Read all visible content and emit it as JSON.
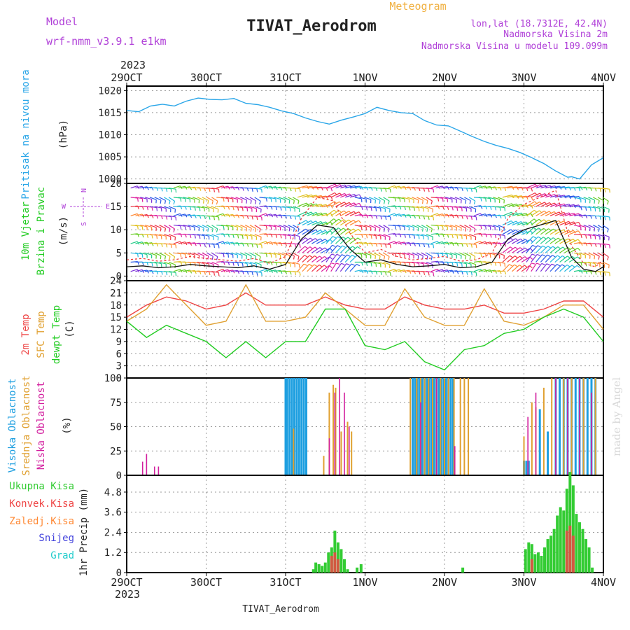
{
  "header": {
    "model_label": "Model",
    "model_name": "wrf-nmm_v3.9.1 e1km",
    "title": "TIVAT_Aerodrom",
    "subtitle": "Meteogram",
    "lonlat": "lon,lat (18.7312E, 42.4N)",
    "altitude": "Nadmorska Visina 2m",
    "model_altitude": "Nadmorska Visina u modelu 109.099m",
    "footer_station": "TIVAT_Aerodrom",
    "credit": "made by Angel"
  },
  "colors": {
    "pressure": "#2aa6e8",
    "temp2m": "#ee4444",
    "sfc_temp": "#e0a030",
    "dewpoint": "#22cc22",
    "high_cloud": "#1e9fe0",
    "mid_cloud": "#e0a030",
    "low_cloud": "#d21e9e",
    "total_precip": "#33cc33",
    "conv_precip": "#ee4444",
    "freezing_precip": "#ff8833",
    "snow": "#4444dd",
    "hail": "#22cccc"
  },
  "chart_data": [
    {
      "type": "line",
      "panel": "pressure",
      "ylabels": [
        "Pritisak na nivou mora",
        "(hPa)"
      ],
      "x_ticks_top": [
        "29OCT",
        "30OCT",
        "31OCT",
        "1NOV",
        "2NOV",
        "3NOV",
        "4NOV"
      ],
      "year_label": "2023",
      "ylim": [
        999,
        1021
      ],
      "yticks": [
        1000,
        1005,
        1010,
        1015,
        1020
      ],
      "x": [
        0,
        0.15,
        0.3,
        0.45,
        0.6,
        0.75,
        0.9,
        1.05,
        1.2,
        1.35,
        1.5,
        1.65,
        1.8,
        1.95,
        2.1,
        2.25,
        2.4,
        2.55,
        2.7,
        2.85,
        3.0,
        3.15,
        3.3,
        3.45,
        3.6,
        3.75,
        3.9,
        4.05,
        4.2,
        4.35,
        4.5,
        4.65,
        4.8,
        4.95,
        5.1,
        5.25,
        5.4,
        5.55,
        5.6,
        5.7,
        5.85,
        6.0
      ],
      "y": [
        1015.5,
        1015.2,
        1016.5,
        1016.9,
        1016.5,
        1017.6,
        1018.3,
        1018.0,
        1017.9,
        1018.2,
        1017.1,
        1016.8,
        1016.2,
        1015.4,
        1014.8,
        1013.8,
        1013.0,
        1012.4,
        1013.3,
        1014.0,
        1014.8,
        1016.2,
        1015.5,
        1015.0,
        1014.8,
        1013.2,
        1012.2,
        1012.0,
        1010.8,
        1009.6,
        1008.5,
        1007.6,
        1006.9,
        1006.0,
        1004.8,
        1003.5,
        1001.8,
        1000.4,
        1000.5,
        1000.0,
        1003.2,
        1004.8
      ],
      "series": [
        {
          "name": "Pritisak na nivou mora"
        }
      ]
    },
    {
      "type": "line",
      "panel": "wind",
      "ylabels": [
        "10m Vjetar",
        "Brzina i Pravac",
        "(m/s)"
      ],
      "compass": [
        "N",
        "S",
        "W",
        "E"
      ],
      "ylim": [
        -1,
        20
      ],
      "yticks": [
        0,
        5,
        10,
        15,
        20
      ],
      "x": [
        0,
        0.2,
        0.4,
        0.6,
        0.8,
        1.0,
        1.2,
        1.4,
        1.6,
        1.8,
        2.0,
        2.2,
        2.4,
        2.6,
        2.8,
        3.0,
        3.2,
        3.4,
        3.6,
        3.8,
        4.0,
        4.2,
        4.4,
        4.6,
        4.8,
        5.0,
        5.2,
        5.4,
        5.6,
        5.75,
        5.9,
        6.0
      ],
      "y": [
        2.0,
        2.2,
        1.8,
        2.0,
        2.5,
        2.2,
        2.0,
        1.8,
        2.2,
        1.5,
        2.5,
        8.0,
        11.0,
        10.5,
        6.0,
        3.0,
        3.5,
        2.5,
        2.0,
        2.2,
        2.5,
        1.8,
        2.0,
        3.0,
        8.0,
        10.0,
        11.0,
        12.0,
        4.0,
        1.5,
        1.0,
        2.0
      ],
      "wind_direction_rows": [
        1,
        3,
        5,
        7,
        9,
        11,
        13,
        15,
        17,
        19
      ]
    },
    {
      "type": "line",
      "panel": "temperature",
      "ylabels": [
        "2m Temp",
        "SFC Temp",
        "dewpt Temp",
        "(C)"
      ],
      "ylim": [
        0,
        24
      ],
      "yticks": [
        0,
        3,
        6,
        9,
        12,
        15,
        18,
        21,
        24
      ],
      "x": [
        0,
        0.25,
        0.5,
        0.75,
        1.0,
        1.25,
        1.5,
        1.75,
        2.0,
        2.25,
        2.5,
        2.75,
        3.0,
        3.25,
        3.5,
        3.75,
        4.0,
        4.25,
        4.5,
        4.75,
        5.0,
        5.25,
        5.5,
        5.75,
        6.0
      ],
      "series": [
        {
          "name": "2m Temp",
          "values": [
            15,
            18,
            20,
            19,
            17,
            18,
            21,
            18,
            18,
            18,
            20,
            18,
            17,
            17,
            20,
            18,
            17,
            17,
            18,
            16,
            16,
            17,
            19,
            19,
            15
          ]
        },
        {
          "name": "SFC Temp",
          "values": [
            14,
            17,
            23,
            18,
            13,
            14,
            23,
            14,
            14,
            15,
            21,
            17,
            13,
            13,
            22,
            15,
            13,
            13,
            22,
            14,
            13,
            15,
            18,
            18,
            12
          ]
        },
        {
          "name": "dewpt Temp",
          "values": [
            14,
            10,
            13,
            11,
            9,
            5,
            9,
            5,
            9,
            9,
            17,
            17,
            8,
            7,
            9,
            4,
            2,
            7,
            8,
            11,
            12,
            15,
            17,
            15,
            9
          ]
        }
      ]
    },
    {
      "type": "bar",
      "panel": "cloud",
      "ylabels": [
        "Visoka Oblacnost",
        "Srednja Oblacnost",
        "Niska Oblacnost",
        "(%)"
      ],
      "ylim": [
        0,
        100
      ],
      "yticks": [
        0,
        25,
        50,
        75,
        100
      ],
      "series": [
        {
          "name": "Visoka Oblacnost",
          "x": [
            2.0,
            2.02,
            2.05,
            2.08,
            2.11,
            2.14,
            2.17,
            2.2,
            2.23,
            2.26,
            3.6,
            3.63,
            3.66,
            3.69,
            3.72,
            3.75,
            3.78,
            3.81,
            3.84,
            3.87,
            3.9,
            3.93,
            3.96,
            3.99,
            4.02,
            4.05,
            4.08,
            4.11,
            5.0,
            5.03,
            5.06,
            5.2,
            5.3,
            5.4,
            5.45,
            5.5,
            5.55,
            5.6,
            5.65,
            5.7,
            5.75,
            5.8,
            5.85,
            5.9
          ],
          "values": [
            100,
            100,
            100,
            100,
            100,
            100,
            100,
            100,
            100,
            100,
            100,
            100,
            100,
            100,
            100,
            100,
            100,
            100,
            100,
            100,
            100,
            100,
            100,
            100,
            100,
            100,
            100,
            100,
            15,
            15,
            15,
            68,
            45,
            100,
            100,
            100,
            100,
            100,
            100,
            100,
            100,
            100,
            100,
            100
          ]
        },
        {
          "name": "Srednja Oblacnost",
          "x": [
            2.1,
            2.48,
            2.55,
            2.6,
            2.63,
            2.7,
            2.78,
            2.83,
            3.57,
            3.65,
            3.7,
            3.75,
            3.8,
            3.85,
            3.9,
            3.95,
            4.0,
            4.05,
            4.12,
            4.2,
            4.25,
            4.3,
            5.0,
            5.1,
            5.15,
            5.25,
            5.35,
            5.5,
            5.6,
            5.75,
            5.9
          ],
          "values": [
            48,
            20,
            85,
            93,
            90,
            45,
            55,
            45,
            100,
            100,
            100,
            100,
            100,
            100,
            100,
            100,
            100,
            100,
            100,
            100,
            100,
            100,
            40,
            75,
            70,
            90,
            100,
            100,
            100,
            100,
            100
          ]
        },
        {
          "name": "Niska Oblacnost",
          "x": [
            0.2,
            0.25,
            0.35,
            0.4,
            2.55,
            2.62,
            2.68,
            2.74,
            2.8,
            3.7,
            3.9,
            4.13,
            5.05,
            5.15,
            5.4,
            5.55,
            5.7,
            5.85
          ],
          "values": [
            14,
            22,
            9,
            9,
            38,
            85,
            100,
            85,
            50,
            75,
            100,
            30,
            60,
            85,
            100,
            100,
            100,
            85
          ]
        }
      ]
    },
    {
      "type": "bar",
      "panel": "precipitation",
      "ylabels": [
        "1hr Precip (mm)"
      ],
      "legend": [
        "Ukupna Kisa",
        "Konvek.Kisa",
        "Zaledj.Kisa",
        "Snijeg",
        "Grad"
      ],
      "x_ticks_bottom": [
        "29OCT",
        "30OCT",
        "31OCT",
        "1NOV",
        "2NOV",
        "3NOV",
        "4NOV"
      ],
      "year_label": "2023",
      "ylim": [
        0,
        5.8
      ],
      "yticks": [
        0,
        1.2,
        2.4,
        3.6,
        4.8
      ],
      "series": [
        {
          "name": "Ukupna Kisa",
          "x": [
            2.35,
            2.38,
            2.42,
            2.46,
            2.5,
            2.54,
            2.58,
            2.62,
            2.66,
            2.7,
            2.74,
            2.78,
            2.9,
            2.95,
            4.23,
            5.02,
            5.06,
            5.1,
            5.14,
            5.18,
            5.22,
            5.26,
            5.3,
            5.34,
            5.38,
            5.42,
            5.46,
            5.5,
            5.54,
            5.58,
            5.62,
            5.66,
            5.7,
            5.74,
            5.78,
            5.82,
            5.86
          ],
          "values": [
            0.2,
            0.6,
            0.5,
            0.4,
            0.6,
            1.2,
            1.5,
            2.5,
            1.8,
            1.4,
            0.8,
            0.2,
            0.3,
            0.5,
            0.3,
            1.4,
            1.8,
            1.7,
            1.1,
            1.2,
            1.0,
            1.5,
            2.0,
            2.2,
            2.6,
            3.4,
            3.9,
            3.7,
            5.0,
            6.0,
            5.2,
            3.5,
            3.0,
            2.6,
            2.0,
            1.5,
            0.3
          ]
        },
        {
          "name": "Konvek.Kisa",
          "x": [
            2.58,
            2.62,
            2.66,
            5.1,
            5.54,
            5.58,
            5.62
          ],
          "values": [
            1.0,
            1.2,
            0.8,
            0.8,
            2.5,
            2.8,
            2.2
          ]
        }
      ]
    }
  ]
}
